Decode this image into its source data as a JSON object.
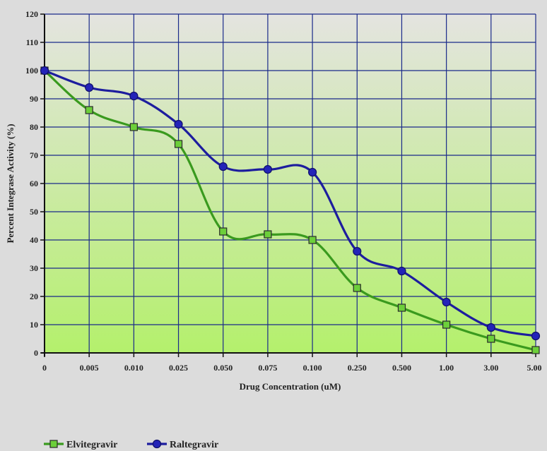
{
  "chart_data": {
    "type": "line",
    "categories": [
      "0",
      "0.005",
      "0.010",
      "0.025",
      "0.050",
      "0.075",
      "0.100",
      "0.250",
      "0.500",
      "1.00",
      "3.00",
      "5.00"
    ],
    "series": [
      {
        "name": "Elvitegravir",
        "marker": "square",
        "color": "#3a9a1e",
        "marker_fill": "#6ccf3a",
        "values": [
          100,
          86,
          80,
          74,
          43,
          42,
          40,
          23,
          16,
          10,
          5,
          1
        ]
      },
      {
        "name": "Raltegravir",
        "marker": "circle",
        "color": "#1d1d9e",
        "marker_fill": "#2424b8",
        "values": [
          100,
          94,
          91,
          81,
          66,
          65,
          64,
          36,
          29,
          18,
          9,
          6
        ]
      }
    ],
    "xlabel": "Drug Concentration (uM)",
    "ylabel": "Percent Integrase Activity (%)",
    "ylim": [
      0,
      120
    ],
    "yticks": [
      0,
      10,
      20,
      30,
      40,
      50,
      60,
      70,
      80,
      90,
      100,
      110,
      120
    ],
    "grid": true,
    "legend_position": "bottom-left",
    "colors": {
      "plot_top": "#e4e4e0",
      "plot_bottom": "#b4f06c",
      "grid": "#1a2a8a",
      "page_bg": "#dcdcdc"
    }
  }
}
